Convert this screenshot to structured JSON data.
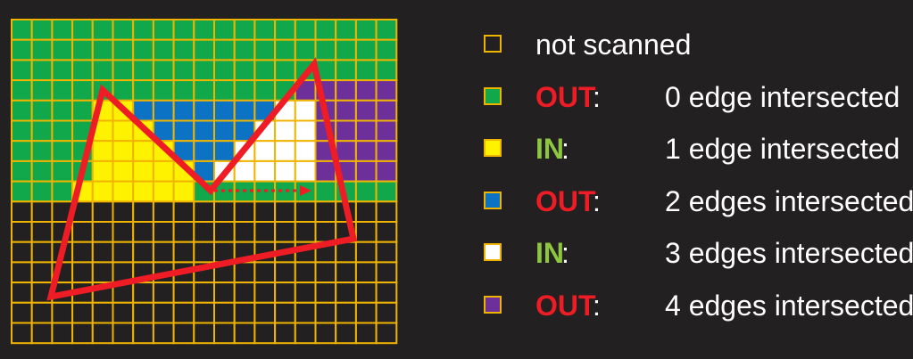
{
  "grid": {
    "cols": 19,
    "rows": 16,
    "cell_colors": [
      "GGGGGGGGGGGGGGGGGGG",
      "GGGGGGGGGGGGGGGGGGG",
      "GGGGGGGGGGGGGGGGGGG",
      "GGGGGGGGGGGGGGPPPPP",
      "GGGGYYBBBBBBBWWPPPP",
      "GGGGYYYBBBBBWWWPPPP",
      "GGGGYYYYBBBWWWWPPPP",
      "GGGGYYYYYBWWWWWPPPP",
      "GGGYYYYYYGGGGGGGGGG",
      "KKKKKKKKKKKKKKKKKKK",
      "KKKKKKKKKKKKKKKKKKK",
      "KKKKKKKKKKKKKKKKKKK",
      "KKKKKKKKKKKKKKKKKKK",
      "KKKKKKKKKKKKKKKKKKK",
      "KKKKKKKKKKKKKKKKKKK",
      "KKKKKKKKKKKKKKKKKKK"
    ],
    "legend_key": {
      "K": "not scanned",
      "G": "0",
      "Y": "1",
      "B": "2",
      "W": "3",
      "P": "4"
    },
    "colors": {
      "K": "#222021",
      "G": "#10a84a",
      "Y": "#fef200",
      "B": "#0b72c4",
      "W": "#ffffff",
      "P": "#6d2f9a",
      "cell_border": "#f0b400",
      "polygon": "#ee1c24"
    }
  },
  "legend": [
    {
      "swatch": "#222021",
      "status": "",
      "status_color": "",
      "text": "not scanned"
    },
    {
      "swatch": "#10a84a",
      "status": "OUT",
      "status_color": "#ee1c24",
      "text": "0 edge intersected"
    },
    {
      "swatch": "#fef200",
      "status": "IN",
      "status_color": "#8dc63f",
      "text": "1 edge intersected"
    },
    {
      "swatch": "#0b72c4",
      "status": "OUT",
      "status_color": "#ee1c24",
      "text": "2 edges intersected"
    },
    {
      "swatch": "#ffffff",
      "status": "IN",
      "status_color": "#8dc63f",
      "text": "3 edges intersected"
    },
    {
      "swatch": "#6d2f9a",
      "status": "OUT",
      "status_color": "#ee1c24",
      "text": "4 edges intersected"
    }
  ],
  "colon": ":"
}
